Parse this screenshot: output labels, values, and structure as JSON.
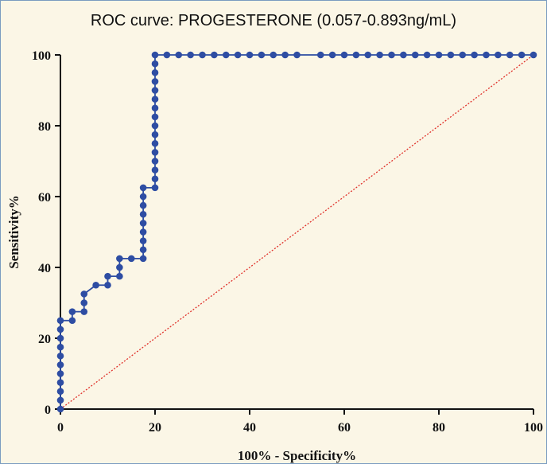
{
  "chart_data": {
    "type": "line",
    "title": "ROC curve: PROGESTERONE (0.057-0.893ng/mL)",
    "xlabel": "100% - Specificity%",
    "ylabel": "Sensitivity%",
    "xlim": [
      0,
      100
    ],
    "ylim": [
      0,
      100
    ],
    "xticks": [
      0,
      20,
      40,
      60,
      80,
      100
    ],
    "yticks": [
      0,
      20,
      40,
      60,
      80,
      100
    ],
    "grid": false,
    "colors": {
      "roc": "#2e4da3",
      "reference": "#e0302a"
    },
    "series": [
      {
        "points": [
          [
            0,
            0
          ],
          [
            0,
            2.5
          ],
          [
            0,
            5
          ],
          [
            0,
            7.5
          ],
          [
            0,
            10
          ],
          [
            0,
            12.5
          ],
          [
            0,
            15
          ],
          [
            0,
            17.5
          ],
          [
            0,
            20
          ],
          [
            0,
            22.5
          ],
          [
            0,
            25
          ],
          [
            2.5,
            25
          ],
          [
            2.5,
            27.5
          ],
          [
            5,
            27.5
          ],
          [
            5,
            30
          ],
          [
            5,
            32.5
          ],
          [
            7.5,
            35
          ],
          [
            10,
            35
          ],
          [
            10,
            37.5
          ],
          [
            12.5,
            37.5
          ],
          [
            12.5,
            40
          ],
          [
            12.5,
            42.5
          ],
          [
            15,
            42.5
          ],
          [
            17.5,
            42.5
          ],
          [
            17.5,
            45
          ],
          [
            17.5,
            47.5
          ],
          [
            17.5,
            50
          ],
          [
            17.5,
            52.5
          ],
          [
            17.5,
            55
          ],
          [
            17.5,
            57.5
          ],
          [
            17.5,
            60
          ],
          [
            17.5,
            62.5
          ],
          [
            20,
            62.5
          ],
          [
            20,
            65
          ],
          [
            20,
            67.5
          ],
          [
            20,
            70
          ],
          [
            20,
            72.5
          ],
          [
            20,
            75
          ],
          [
            20,
            77.5
          ],
          [
            20,
            80
          ],
          [
            20,
            82.5
          ],
          [
            20,
            85
          ],
          [
            20,
            87.5
          ],
          [
            20,
            90
          ],
          [
            20,
            92.5
          ],
          [
            20,
            95
          ],
          [
            20,
            97.5
          ],
          [
            20,
            100
          ],
          [
            22.5,
            100
          ],
          [
            25,
            100
          ],
          [
            27.5,
            100
          ],
          [
            30,
            100
          ],
          [
            32.5,
            100
          ],
          [
            35,
            100
          ],
          [
            37.5,
            100
          ],
          [
            40,
            100
          ],
          [
            42.5,
            100
          ],
          [
            45,
            100
          ],
          [
            47.5,
            100
          ],
          [
            50,
            100
          ],
          [
            55,
            100
          ],
          [
            57.5,
            100
          ],
          [
            60,
            100
          ],
          [
            62.5,
            100
          ],
          [
            65,
            100
          ],
          [
            67.5,
            100
          ],
          [
            70,
            100
          ],
          [
            72.5,
            100
          ],
          [
            75,
            100
          ],
          [
            77.5,
            100
          ],
          [
            80,
            100
          ],
          [
            82.5,
            100
          ],
          [
            85,
            100
          ],
          [
            87.5,
            100
          ],
          [
            90,
            100
          ],
          [
            92.5,
            100
          ],
          [
            95,
            100
          ],
          [
            97.5,
            100
          ],
          [
            100,
            100
          ]
        ]
      },
      {
        "style": "dotted",
        "points": [
          [
            0,
            0
          ],
          [
            100,
            100
          ]
        ]
      }
    ]
  }
}
